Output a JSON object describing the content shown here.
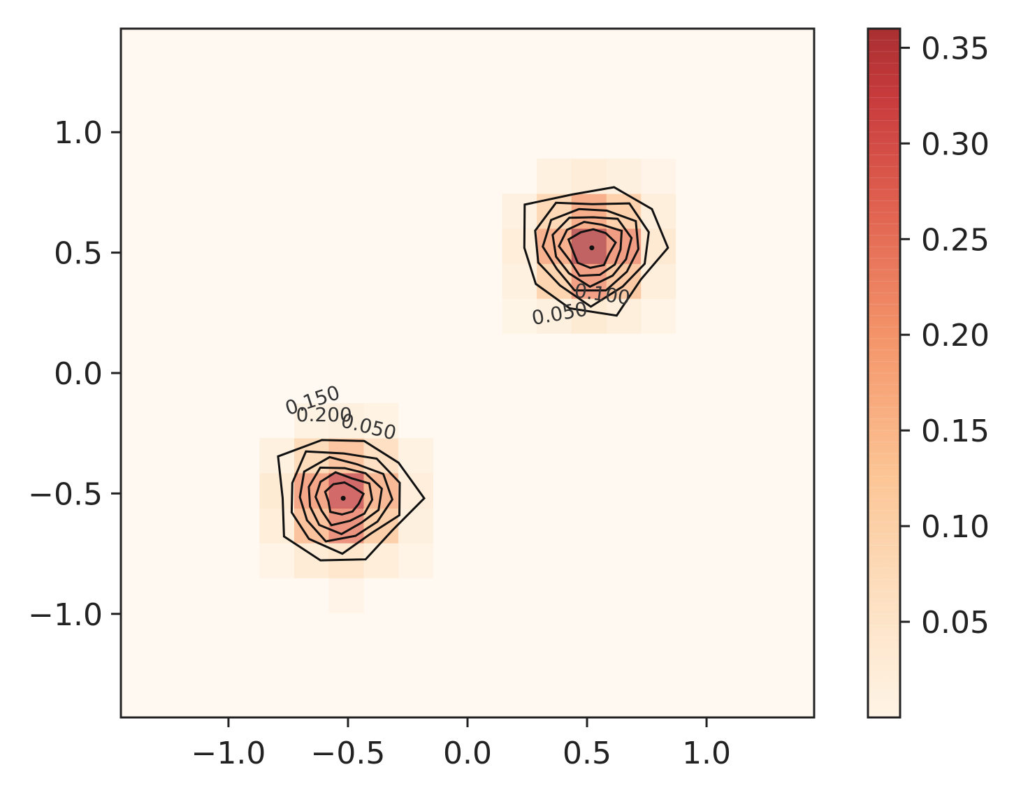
{
  "chart_data": {
    "type": "heatmap",
    "title": "",
    "xlabel": "",
    "ylabel": "",
    "xlim": [
      -1.45,
      1.45
    ],
    "ylim": [
      -1.43,
      1.43
    ],
    "x_ticks": [
      {
        "value": -1.0,
        "label": "−1.0"
      },
      {
        "value": -0.5,
        "label": "−0.5"
      },
      {
        "value": 0.0,
        "label": "0.0"
      },
      {
        "value": 0.5,
        "label": "0.5"
      },
      {
        "value": 1.0,
        "label": "1.0"
      }
    ],
    "y_ticks": [
      {
        "value": 1.0,
        "label": "1.0"
      },
      {
        "value": 0.5,
        "label": "0.5"
      },
      {
        "value": 0.0,
        "label": "0.0"
      },
      {
        "value": -0.5,
        "label": "−0.5"
      },
      {
        "value": -1.0,
        "label": "−1.0"
      }
    ],
    "grid": false,
    "background_color": "#fff9f2",
    "colormap": "OrRd (alpha 0.75)",
    "colorbar": {
      "range": [
        0.0,
        0.36
      ],
      "ticks": [
        {
          "value": 0.05,
          "label": "0.05"
        },
        {
          "value": 0.1,
          "label": "0.10"
        },
        {
          "value": 0.15,
          "label": "0.15"
        },
        {
          "value": 0.2,
          "label": "0.20"
        },
        {
          "value": 0.25,
          "label": "0.25"
        },
        {
          "value": 0.3,
          "label": "0.30"
        },
        {
          "value": 0.35,
          "label": "0.35"
        }
      ],
      "bottom_color": "#fff4e6",
      "top_color": "#b03234"
    },
    "peaks": [
      {
        "center": [
          0.52,
          0.52
        ],
        "max_density": 0.36,
        "sigma": 0.14
      },
      {
        "center": [
          -0.52,
          -0.52
        ],
        "max_density": 0.34,
        "sigma": 0.14
      }
    ],
    "contour_levels": [
      0.05,
      0.1,
      0.15,
      0.2,
      0.25,
      0.3
    ],
    "contour_labels": [
      {
        "text": "0.050",
        "peak": 0
      },
      {
        "text": "0.100",
        "peak": 0
      },
      {
        "text": "0.050",
        "peak": 1
      },
      {
        "text": "0.150",
        "peak": 1
      },
      {
        "text": "0.200",
        "peak": 1
      }
    ]
  }
}
